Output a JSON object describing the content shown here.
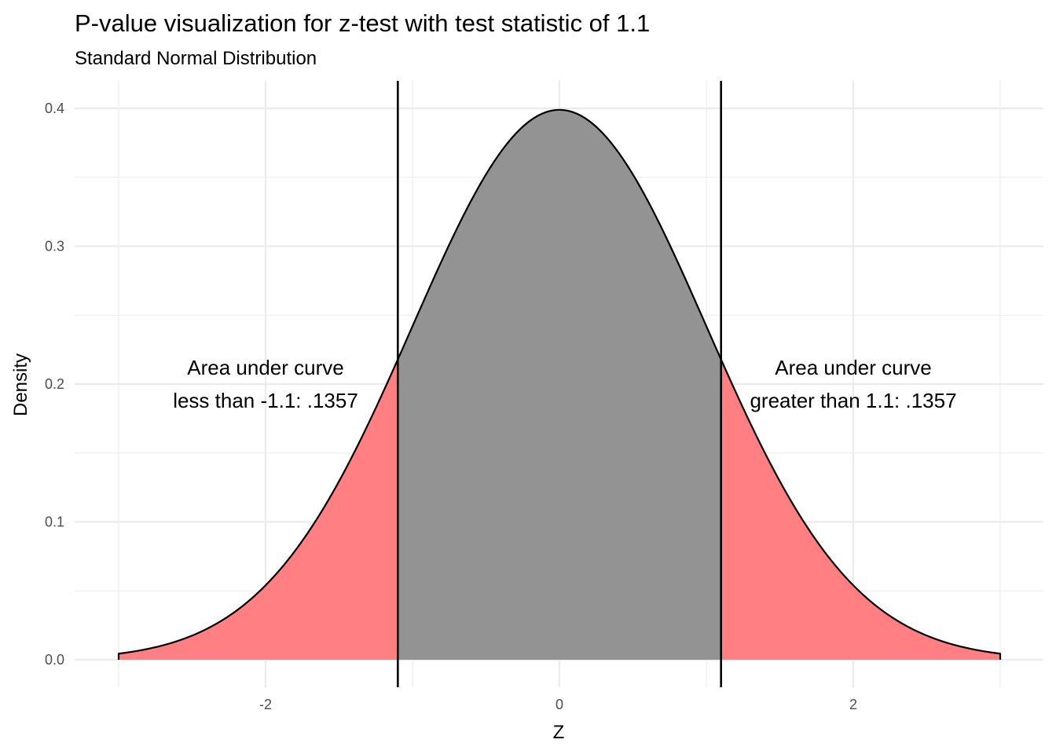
{
  "chart_data": {
    "type": "area",
    "title": "P-value visualization for z-test with test statistic of 1.1",
    "subtitle": "Standard Normal Distribution",
    "xlabel": "Z",
    "ylabel": "Density",
    "xlim": [
      -3,
      3
    ],
    "ylim": [
      0,
      0.4
    ],
    "x_ticks": [
      -2,
      0,
      2
    ],
    "x_tick_labels": [
      "-2",
      "0",
      "2"
    ],
    "y_ticks": [
      0.0,
      0.1,
      0.2,
      0.3,
      0.4
    ],
    "y_tick_labels": [
      "0.0",
      "0.1",
      "0.2",
      "0.3",
      "0.4"
    ],
    "distribution": "standard-normal",
    "test_statistic": 1.1,
    "critical_lines": [
      -1.1,
      1.1
    ],
    "regions": [
      {
        "from": -3,
        "to": -1.1,
        "color": "#ff7f82"
      },
      {
        "from": -1.1,
        "to": 1.1,
        "color": "#939393"
      },
      {
        "from": 1.1,
        "to": 3,
        "color": "#ff7f82"
      }
    ],
    "annotations": [
      {
        "x": -2.0,
        "y": 0.2,
        "lines": [
          "Area under curve",
          "less than -1.1: .1357"
        ]
      },
      {
        "x": 2.0,
        "y": 0.2,
        "lines": [
          "Area under curve",
          "greater than 1.1: .1357"
        ]
      }
    ],
    "grid": true,
    "legend": "none"
  }
}
